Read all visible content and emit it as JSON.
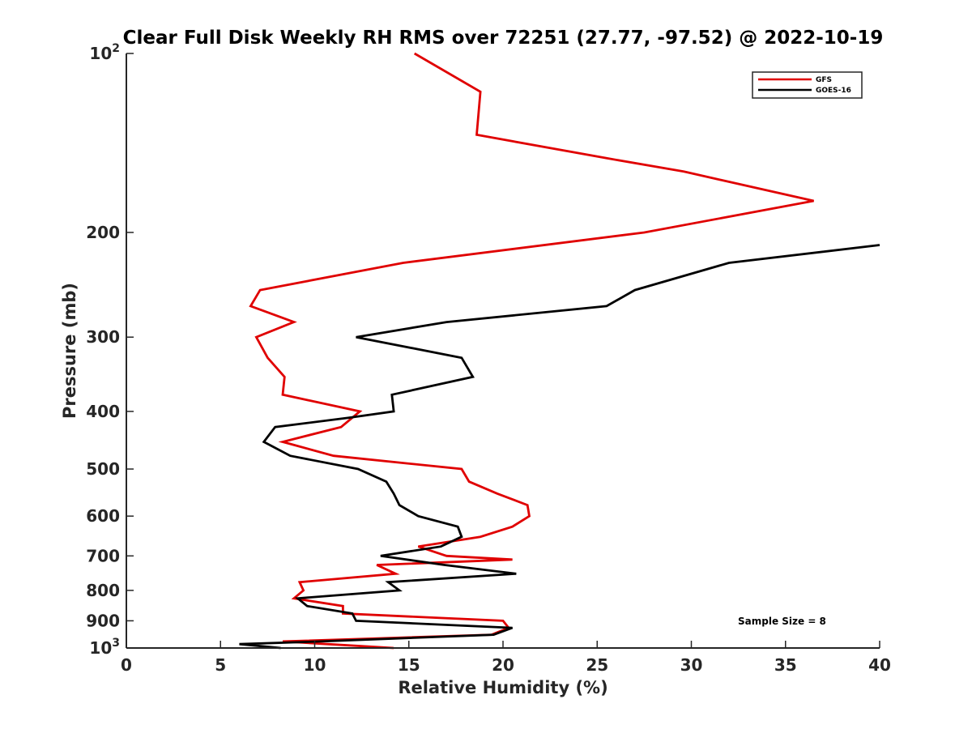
{
  "chart_data": {
    "type": "line",
    "title": "Clear Full Disk Weekly RH RMS over 72251 (27.77, -97.52) @ 2022-10-19",
    "xlabel": "Relative Humidity (%)",
    "ylabel": "Pressure (mb)",
    "xlim": [
      0,
      40
    ],
    "ylim": [
      100,
      1000
    ],
    "y_scale": "log",
    "y_reversed": true,
    "x_ticks": [
      0,
      5,
      10,
      15,
      20,
      25,
      30,
      35,
      40
    ],
    "x_tick_labels": [
      "0",
      "5",
      "10",
      "15",
      "20",
      "25",
      "30",
      "35",
      "40"
    ],
    "y_ticks": [
      100,
      200,
      300,
      400,
      500,
      600,
      700,
      800,
      900,
      1000
    ],
    "y_tick_labels": [
      {
        "base": "10",
        "exp": "2"
      },
      {
        "base": "200",
        "exp": ""
      },
      {
        "base": "300",
        "exp": ""
      },
      {
        "base": "400",
        "exp": ""
      },
      {
        "base": "500",
        "exp": ""
      },
      {
        "base": "600",
        "exp": ""
      },
      {
        "base": "700",
        "exp": ""
      },
      {
        "base": "800",
        "exp": ""
      },
      {
        "base": "900",
        "exp": ""
      },
      {
        "base": "10",
        "exp": "3"
      }
    ],
    "grid": false,
    "legend_position": "top-right",
    "annotation": "Sample Size = 8",
    "series": [
      {
        "name": "GFS",
        "color": "#e00000",
        "points": [
          {
            "x": 15.3,
            "y": 100
          },
          {
            "x": 18.8,
            "y": 116
          },
          {
            "x": 18.6,
            "y": 137
          },
          {
            "x": 25.5,
            "y": 150
          },
          {
            "x": 29.6,
            "y": 158
          },
          {
            "x": 36.5,
            "y": 177
          },
          {
            "x": 27.5,
            "y": 200
          },
          {
            "x": 14.7,
            "y": 225
          },
          {
            "x": 7.1,
            "y": 250
          },
          {
            "x": 6.6,
            "y": 266
          },
          {
            "x": 8.9,
            "y": 283
          },
          {
            "x": 6.9,
            "y": 300
          },
          {
            "x": 7.5,
            "y": 325
          },
          {
            "x": 8.4,
            "y": 350
          },
          {
            "x": 8.3,
            "y": 375
          },
          {
            "x": 12.4,
            "y": 400
          },
          {
            "x": 11.4,
            "y": 425
          },
          {
            "x": 8.3,
            "y": 450
          },
          {
            "x": 11.0,
            "y": 475
          },
          {
            "x": 17.8,
            "y": 500
          },
          {
            "x": 18.2,
            "y": 525
          },
          {
            "x": 19.7,
            "y": 550
          },
          {
            "x": 21.3,
            "y": 575
          },
          {
            "x": 21.4,
            "y": 600
          },
          {
            "x": 20.5,
            "y": 625
          },
          {
            "x": 18.8,
            "y": 650
          },
          {
            "x": 15.5,
            "y": 675
          },
          {
            "x": 17.0,
            "y": 700
          },
          {
            "x": 20.5,
            "y": 710
          },
          {
            "x": 13.3,
            "y": 725
          },
          {
            "x": 14.3,
            "y": 750
          },
          {
            "x": 9.2,
            "y": 775
          },
          {
            "x": 9.4,
            "y": 800
          },
          {
            "x": 8.9,
            "y": 825
          },
          {
            "x": 11.5,
            "y": 850
          },
          {
            "x": 11.5,
            "y": 875
          },
          {
            "x": 20.0,
            "y": 900
          },
          {
            "x": 20.3,
            "y": 925
          },
          {
            "x": 19.4,
            "y": 950
          },
          {
            "x": 8.3,
            "y": 975
          },
          {
            "x": 14.2,
            "y": 1000
          }
        ]
      },
      {
        "name": "GOES-16",
        "color": "#000000",
        "points": [
          {
            "x": 40.0,
            "y": 210
          },
          {
            "x": 32.0,
            "y": 225
          },
          {
            "x": 27.0,
            "y": 250
          },
          {
            "x": 25.5,
            "y": 266
          },
          {
            "x": 17.0,
            "y": 283
          },
          {
            "x": 12.2,
            "y": 300
          },
          {
            "x": 17.8,
            "y": 325
          },
          {
            "x": 18.4,
            "y": 350
          },
          {
            "x": 14.1,
            "y": 375
          },
          {
            "x": 14.2,
            "y": 400
          },
          {
            "x": 11.8,
            "y": 410
          },
          {
            "x": 7.9,
            "y": 425
          },
          {
            "x": 7.3,
            "y": 450
          },
          {
            "x": 8.7,
            "y": 475
          },
          {
            "x": 12.3,
            "y": 500
          },
          {
            "x": 13.8,
            "y": 525
          },
          {
            "x": 14.2,
            "y": 550
          },
          {
            "x": 14.5,
            "y": 575
          },
          {
            "x": 15.5,
            "y": 600
          },
          {
            "x": 17.6,
            "y": 625
          },
          {
            "x": 17.8,
            "y": 650
          },
          {
            "x": 16.7,
            "y": 675
          },
          {
            "x": 13.5,
            "y": 700
          },
          {
            "x": 16.9,
            "y": 725
          },
          {
            "x": 20.7,
            "y": 750
          },
          {
            "x": 13.9,
            "y": 775
          },
          {
            "x": 14.5,
            "y": 800
          },
          {
            "x": 9.1,
            "y": 825
          },
          {
            "x": 9.6,
            "y": 850
          },
          {
            "x": 12.0,
            "y": 875
          },
          {
            "x": 12.2,
            "y": 900
          },
          {
            "x": 20.5,
            "y": 925
          },
          {
            "x": 19.5,
            "y": 950
          },
          {
            "x": 10.3,
            "y": 975
          },
          {
            "x": 6.0,
            "y": 985
          },
          {
            "x": 8.2,
            "y": 1000
          }
        ]
      }
    ]
  }
}
